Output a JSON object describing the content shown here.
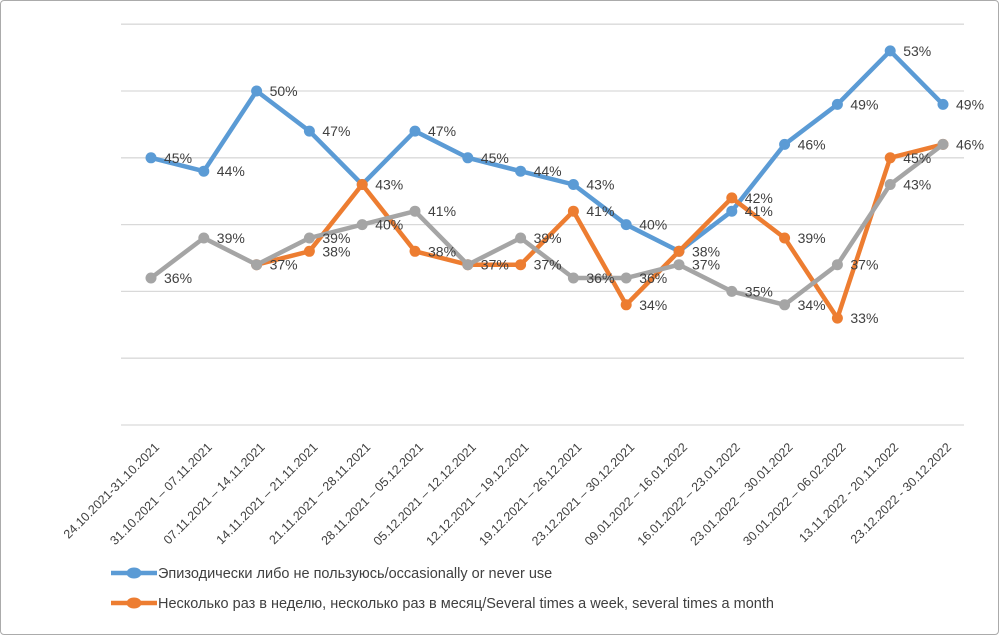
{
  "chart_data": {
    "type": "line",
    "title": "",
    "xlabel": "",
    "ylabel": "",
    "ylim": [
      25,
      55
    ],
    "ytick_step": 5,
    "grid": true,
    "y_axis_labels_visible": false,
    "data_label_format": "percent",
    "legend_position": "bottom-left",
    "categories": [
      "24.10.2021-31.10.2021",
      "31.10.2021 – 07.11.2021",
      "07.11.2021 – 14.11.2021",
      "14.11.2021 – 21.11.2021",
      "21.11.2021 – 28.11.2021",
      "28.11.2021 – 05.12.2021",
      "05.12.2021 – 12.12.2021",
      "12.12.2021 – 19.12.2021",
      "19.12.2021 – 26.12.2021",
      "23.12.2021 – 30.12.2021",
      "09.01.2022 – 16.01.2022",
      "16.01.2022 – 23.01.2022",
      "23.01.2022 – 30.01.2022",
      "30.01.2022 – 06.02.2022",
      "13.11.2022 - 20.11.2022",
      "23.12.2022 - 30.12.2022"
    ],
    "series": [
      {
        "name": "Эпизодически либо не пользуюсь/occasionally or never use",
        "color": "#5B9BD5",
        "in_legend": true,
        "values": [
          45,
          44,
          50,
          47,
          43,
          47,
          45,
          44,
          43,
          40,
          38,
          41,
          46,
          49,
          53,
          49
        ]
      },
      {
        "name": "Несколько раз в неделю, несколько раз в месяц/Several times a week, several times a month",
        "color": "#ED7D31",
        "in_legend": true,
        "values": [
          null,
          null,
          37,
          38,
          43,
          38,
          37,
          37,
          41,
          34,
          38,
          42,
          39,
          33,
          45,
          46
        ]
      },
      {
        "name": "",
        "color": "#A5A5A5",
        "in_legend": false,
        "values": [
          36,
          39,
          37,
          39,
          40,
          41,
          37,
          39,
          36,
          36,
          37,
          35,
          34,
          37,
          43,
          46
        ]
      }
    ]
  },
  "style_colors": {
    "gridline": "#D9D9D9",
    "data_label_text": "#404040",
    "axis_label_text": "#404040",
    "legend_text": "#404040",
    "frame_border": "#ABABAB"
  }
}
